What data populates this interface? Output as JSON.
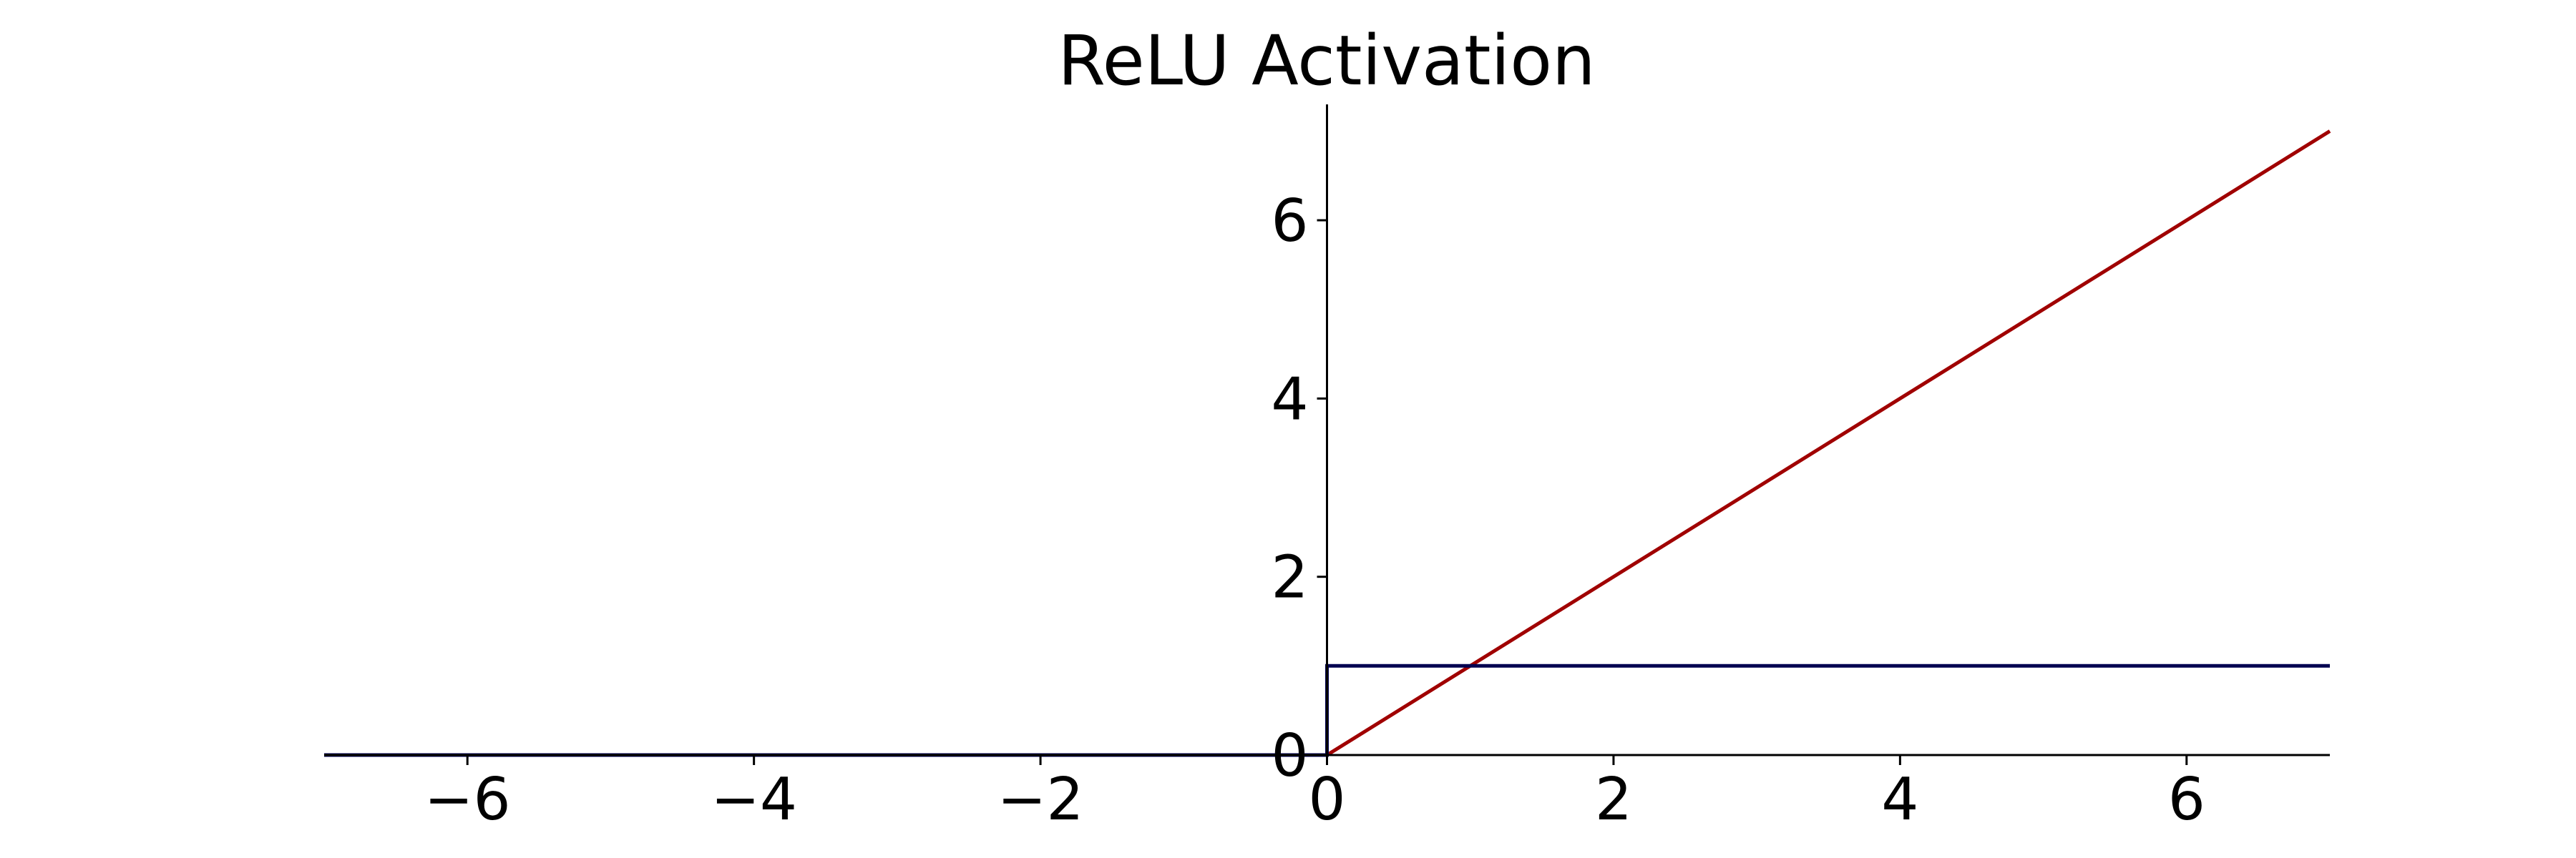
{
  "chart_data": {
    "type": "line",
    "title": "ReLU Activation",
    "xlabel": "",
    "ylabel": "",
    "xlim": [
      -7,
      7
    ],
    "ylim": [
      0,
      7.3
    ],
    "xticks": [
      {
        "value": -6,
        "label": "−6"
      },
      {
        "value": -4,
        "label": "−4"
      },
      {
        "value": -2,
        "label": "−2"
      },
      {
        "value": 0,
        "label": "0"
      },
      {
        "value": 2,
        "label": "2"
      },
      {
        "value": 4,
        "label": "4"
      },
      {
        "value": 6,
        "label": "6"
      }
    ],
    "yticks": [
      {
        "value": 0,
        "label": "0"
      },
      {
        "value": 2,
        "label": "2"
      },
      {
        "value": 4,
        "label": "4"
      },
      {
        "value": 6,
        "label": "6"
      }
    ],
    "grid": false,
    "axes": "centered at origin (spines through 0)",
    "series": [
      {
        "color": "#a00000",
        "x": [
          -7,
          0,
          7
        ],
        "y": [
          0,
          0,
          7
        ]
      },
      {
        "color": "#000050",
        "x": [
          -7,
          0,
          0,
          7
        ],
        "y": [
          0,
          0,
          1,
          1
        ]
      }
    ]
  }
}
